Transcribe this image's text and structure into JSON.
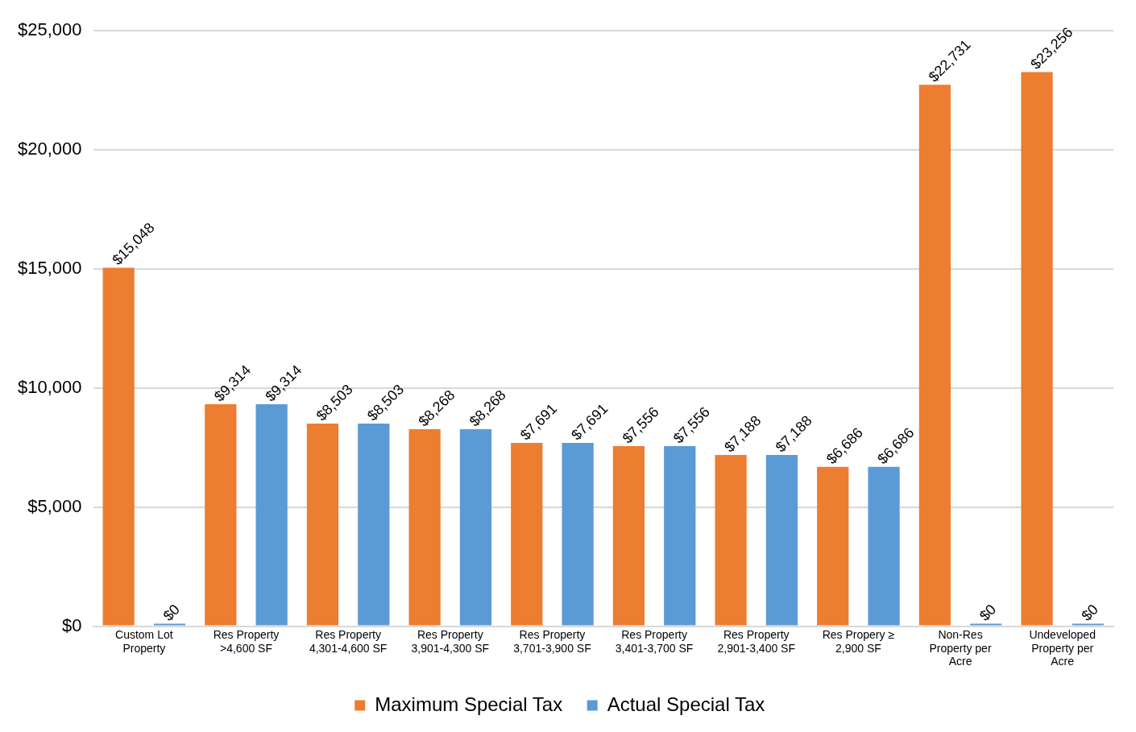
{
  "chart_data": {
    "type": "bar",
    "categories": [
      "Custom Lot Property",
      "Res Property >4,600 SF",
      "Res Property 4,301-4,600 SF",
      "Res Property 3,901-4,300 SF",
      "Res Property 3,701-3,900 SF",
      "Res Property 3,401-3,700 SF",
      "Res Property 2,901-3,400 SF",
      "Res Propery ≥ 2,900 SF",
      "Non-Res Property per Acre",
      "Undeveloped Property per Acre"
    ],
    "series": [
      {
        "name": "Maximum Special Tax",
        "color": "#ed7d31",
        "values": [
          15048,
          9314,
          8503,
          8268,
          7691,
          7556,
          7188,
          6686,
          22731,
          23256
        ],
        "value_labels": [
          "$15,048",
          "$9,314",
          "$8,503",
          "$8,268",
          "$7,691",
          "$7,556",
          "$7,188",
          "$6,686",
          "$22,731",
          "$23,256"
        ]
      },
      {
        "name": "Actual Special Tax",
        "color": "#5b9bd5",
        "values": [
          0,
          9314,
          8503,
          8268,
          7691,
          7556,
          7188,
          6686,
          0,
          0
        ],
        "value_labels": [
          "$0",
          "$9,314",
          "$8,503",
          "$8,268",
          "$7,691",
          "$7,556",
          "$7,188",
          "$6,686",
          "$0",
          "$0"
        ]
      }
    ],
    "ylim": [
      0,
      25000
    ],
    "yticks": [
      {
        "value": 0,
        "label": "$0"
      },
      {
        "value": 5000,
        "label": "$5,000"
      },
      {
        "value": 10000,
        "label": "$10,000"
      },
      {
        "value": 15000,
        "label": "$15,000"
      },
      {
        "value": 20000,
        "label": "$20,000"
      },
      {
        "value": 25000,
        "label": "$25,000"
      }
    ],
    "grid": "y",
    "legend": "bottom"
  }
}
